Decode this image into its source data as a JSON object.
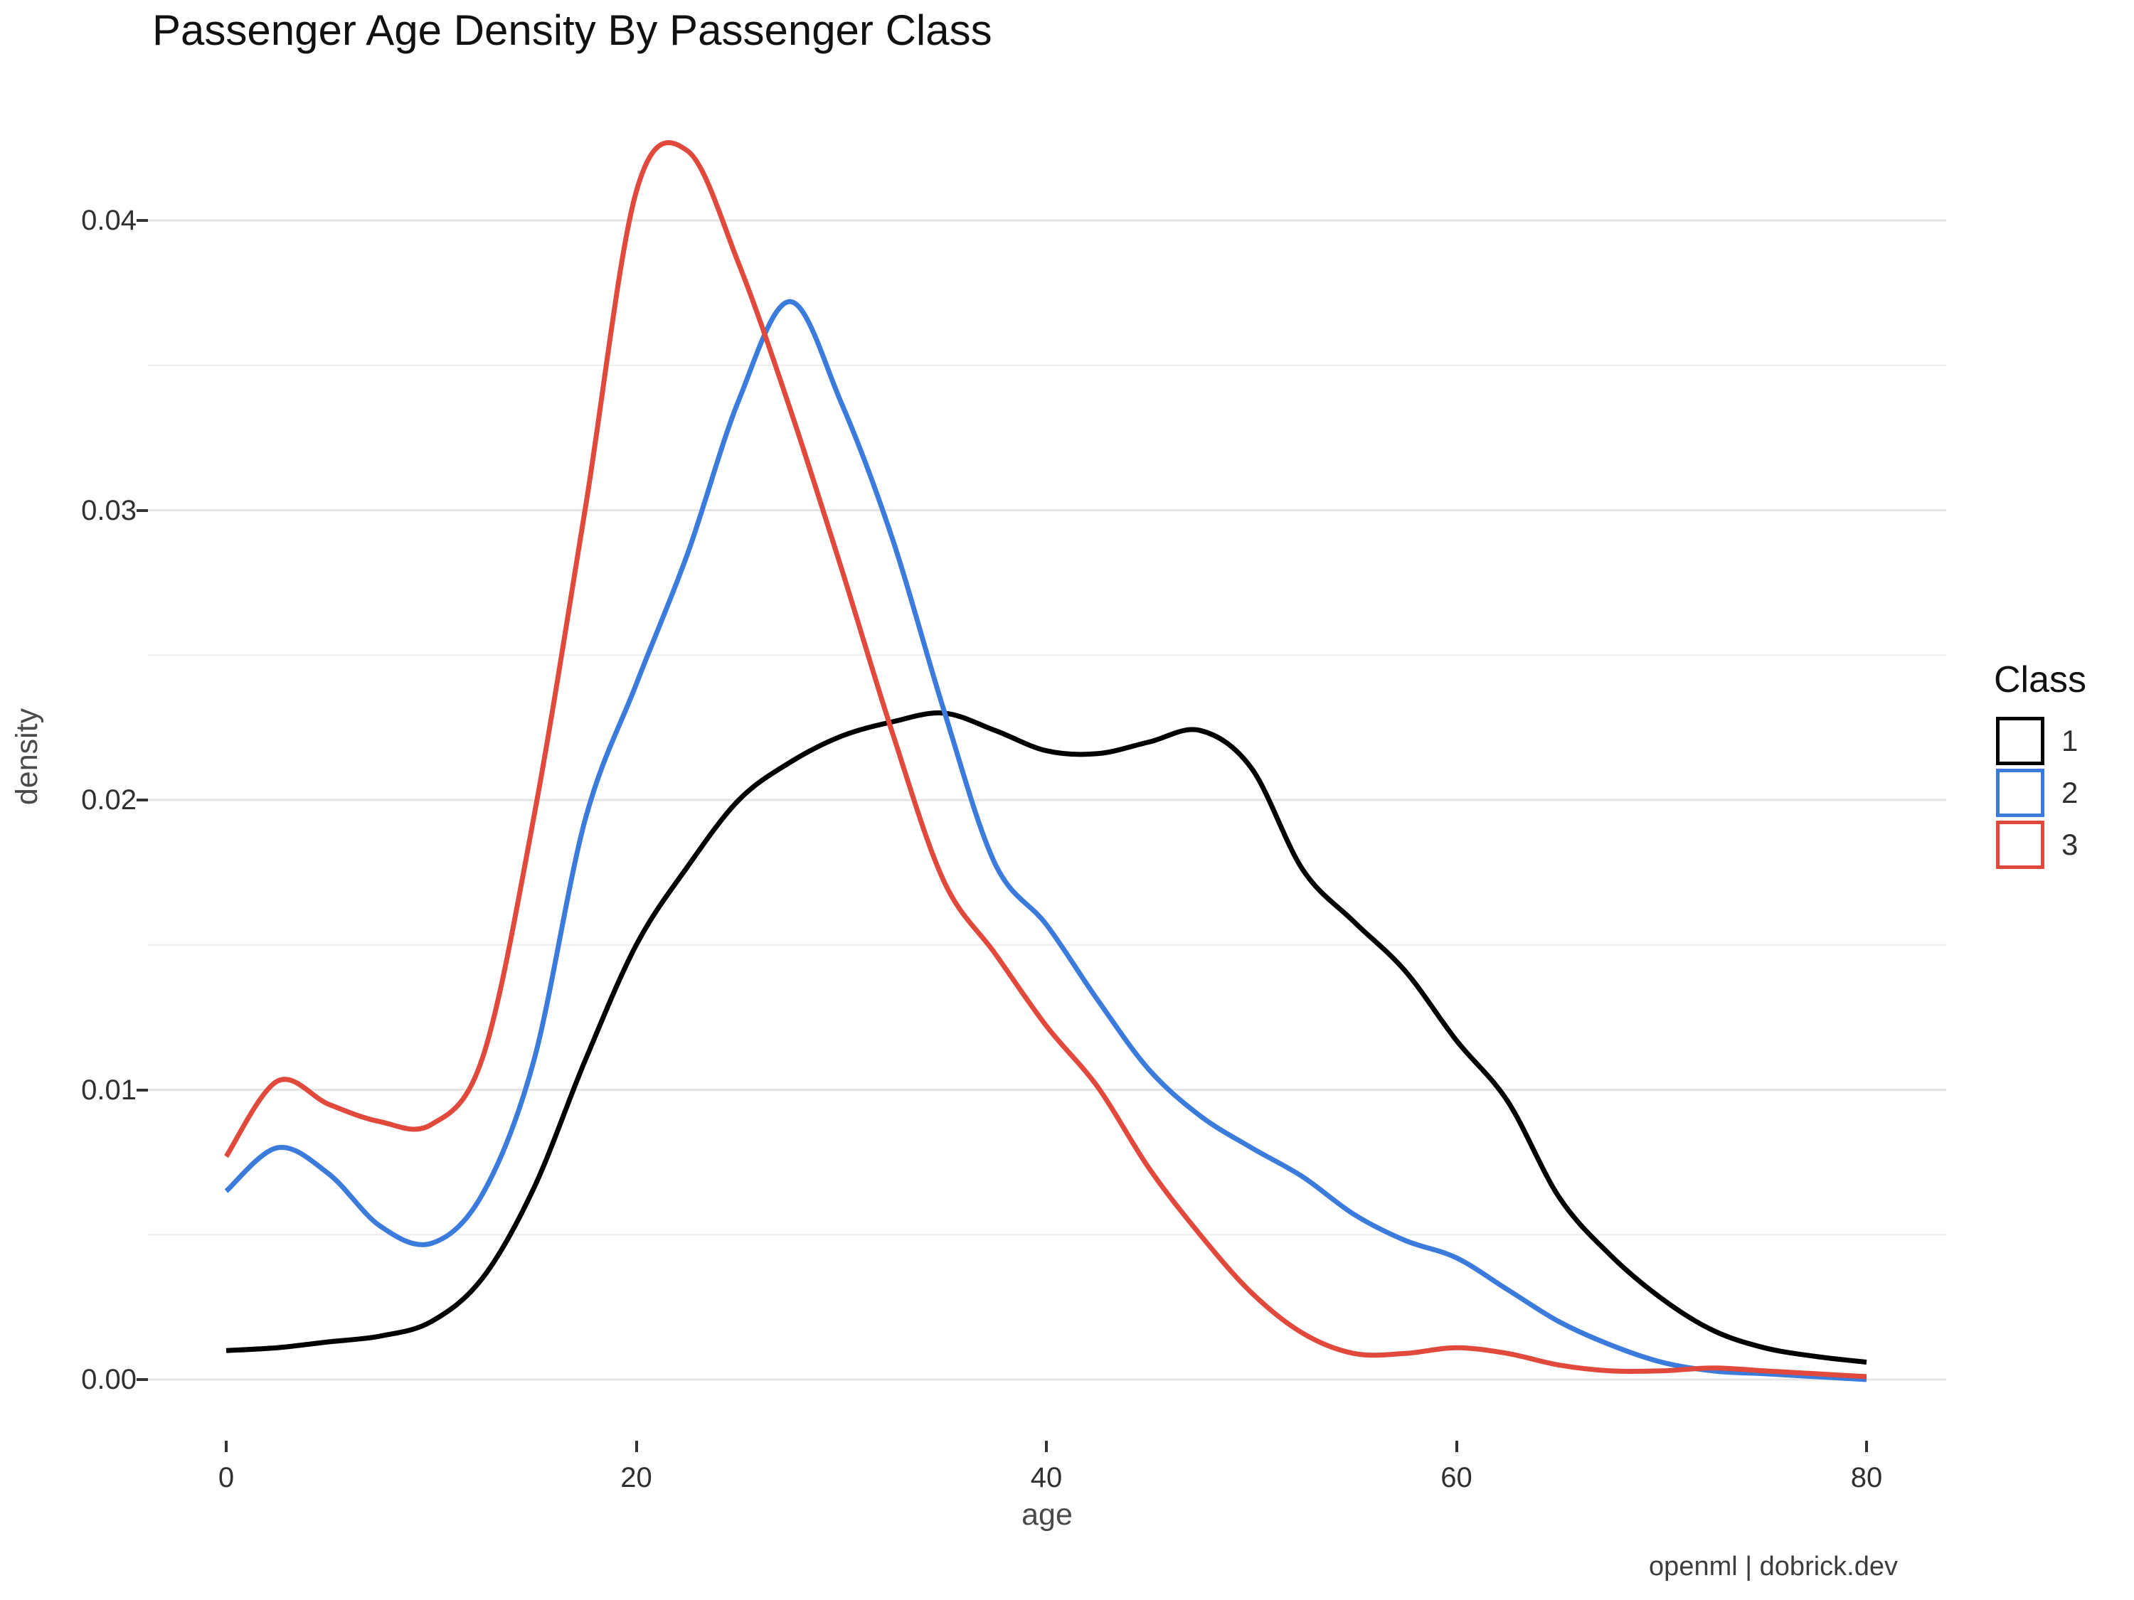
{
  "title": "Passenger Age Density By Passenger Class",
  "footer": "openml | dobrick.dev",
  "legend": {
    "title": "Class"
  },
  "colors": {
    "class1": "#000000",
    "class2": "#3B7BDB",
    "class3": "#E0493C",
    "grid_major": "#E4E4E4",
    "grid_minor": "#EDEDED",
    "tick": "#333333",
    "tick_text": "#303030",
    "axis_title_text": "#4a4a4a"
  },
  "chart_data": {
    "type": "line",
    "title": "Passenger Age Density By Passenger Class",
    "xlabel": "age",
    "ylabel": "density",
    "legend_title": "Class",
    "legend_position": "right",
    "grid": "horizontal only, major every 0.01, minor every 0.005",
    "xlim": [
      0,
      80
    ],
    "ylim": [
      0,
      0.0446
    ],
    "x_ticks": [
      {
        "label": "0",
        "value": 0
      },
      {
        "label": "20",
        "value": 20
      },
      {
        "label": "40",
        "value": 40
      },
      {
        "label": "60",
        "value": 60
      },
      {
        "label": "80",
        "value": 80
      }
    ],
    "y_ticks": [
      {
        "label": "0.00",
        "value": 0
      },
      {
        "label": "0.01",
        "value": 0.01
      },
      {
        "label": "0.02",
        "value": 0.02
      },
      {
        "label": "0.03",
        "value": 0.03
      },
      {
        "label": "0.04",
        "value": 0.04
      }
    ],
    "y_minor_gridlines": [
      0.005,
      0.015,
      0.025,
      0.035
    ],
    "x": [
      0,
      2.5,
      5,
      7.5,
      10,
      12.5,
      15,
      17.5,
      20,
      22.5,
      25,
      27.5,
      30,
      32.5,
      35,
      37.5,
      40,
      42.5,
      45,
      47.5,
      50,
      52.5,
      55,
      57.5,
      60,
      62.5,
      65,
      67.5,
      70,
      72.5,
      75,
      77.5,
      80
    ],
    "series": [
      {
        "name": "1",
        "color": "#000000",
        "values": [
          0.001,
          0.0011,
          0.0013,
          0.0015,
          0.002,
          0.0035,
          0.0066,
          0.011,
          0.015,
          0.0177,
          0.02,
          0.0213,
          0.0222,
          0.0227,
          0.023,
          0.0224,
          0.0217,
          0.0216,
          0.022,
          0.0224,
          0.0211,
          0.0176,
          0.0158,
          0.0141,
          0.0117,
          0.0096,
          0.0063,
          0.0043,
          0.0028,
          0.0017,
          0.0011,
          0.0008,
          0.0006
        ]
      },
      {
        "name": "2",
        "color": "#3B7BDB",
        "values": [
          0.0065,
          0.008,
          0.0071,
          0.0053,
          0.0047,
          0.0064,
          0.011,
          0.0193,
          0.024,
          0.0285,
          0.0338,
          0.0372,
          0.0337,
          0.029,
          0.0231,
          0.0178,
          0.0157,
          0.0131,
          0.0107,
          0.0091,
          0.008,
          0.007,
          0.0057,
          0.0048,
          0.0042,
          0.0031,
          0.002,
          0.0012,
          0.0006,
          0.0003,
          0.0002,
          0.0001,
          0.0
        ]
      },
      {
        "name": "3",
        "color": "#E0493C",
        "values": [
          0.0077,
          0.0103,
          0.0095,
          0.0089,
          0.0088,
          0.0111,
          0.0194,
          0.03,
          0.041,
          0.0424,
          0.0385,
          0.0335,
          0.028,
          0.0223,
          0.0172,
          0.0147,
          0.0122,
          0.0101,
          0.0073,
          0.005,
          0.003,
          0.0016,
          0.0009,
          0.0009,
          0.0011,
          0.0009,
          0.0005,
          0.0003,
          0.0003,
          0.0004,
          0.0003,
          0.0002,
          0.0001
        ]
      }
    ]
  }
}
